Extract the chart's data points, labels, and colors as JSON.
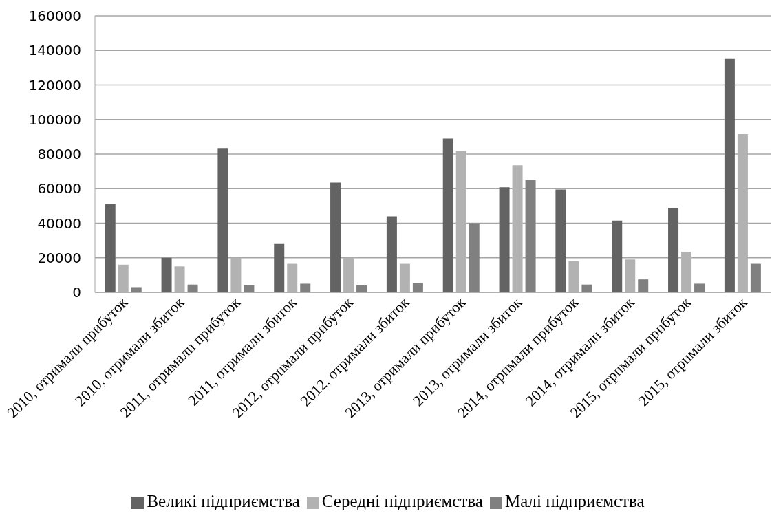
{
  "chart_data": {
    "type": "bar",
    "categories": [
      "2010, отримали прибуток",
      "2010, отримали збиток",
      "2011, отримали прибуток",
      "2011, отримали збиток",
      "2012, отримали прибуток",
      "2012, отримали збиток",
      "2013, отримали прибуток",
      "2013, отримали збиток",
      "2014, отримали прибуток",
      "2014, отримали збиток",
      "2015, отримали прибуток",
      "2015, отримали збиток"
    ],
    "series": [
      {
        "name": "Великі підприємства",
        "color": "#636363",
        "values": [
          51000,
          20000,
          83500,
          28000,
          63500,
          44000,
          89000,
          60800,
          59500,
          41500,
          49000,
          135000
        ]
      },
      {
        "name": "Середні підприємства",
        "color": "#b2b2b2",
        "values": [
          16000,
          15000,
          20000,
          16500,
          20000,
          16500,
          81800,
          73500,
          18000,
          19000,
          23500,
          91500
        ]
      },
      {
        "name": "Малі підприємства",
        "color": "#808080",
        "values": [
          3000,
          4500,
          4000,
          5000,
          4000,
          5500,
          40000,
          65000,
          4500,
          7500,
          5000,
          16500
        ]
      }
    ],
    "ylim": [
      0,
      160000
    ],
    "yticks": [
      0,
      20000,
      40000,
      60000,
      80000,
      100000,
      120000,
      140000,
      160000
    ],
    "grid": "y",
    "legend": "bottom"
  }
}
